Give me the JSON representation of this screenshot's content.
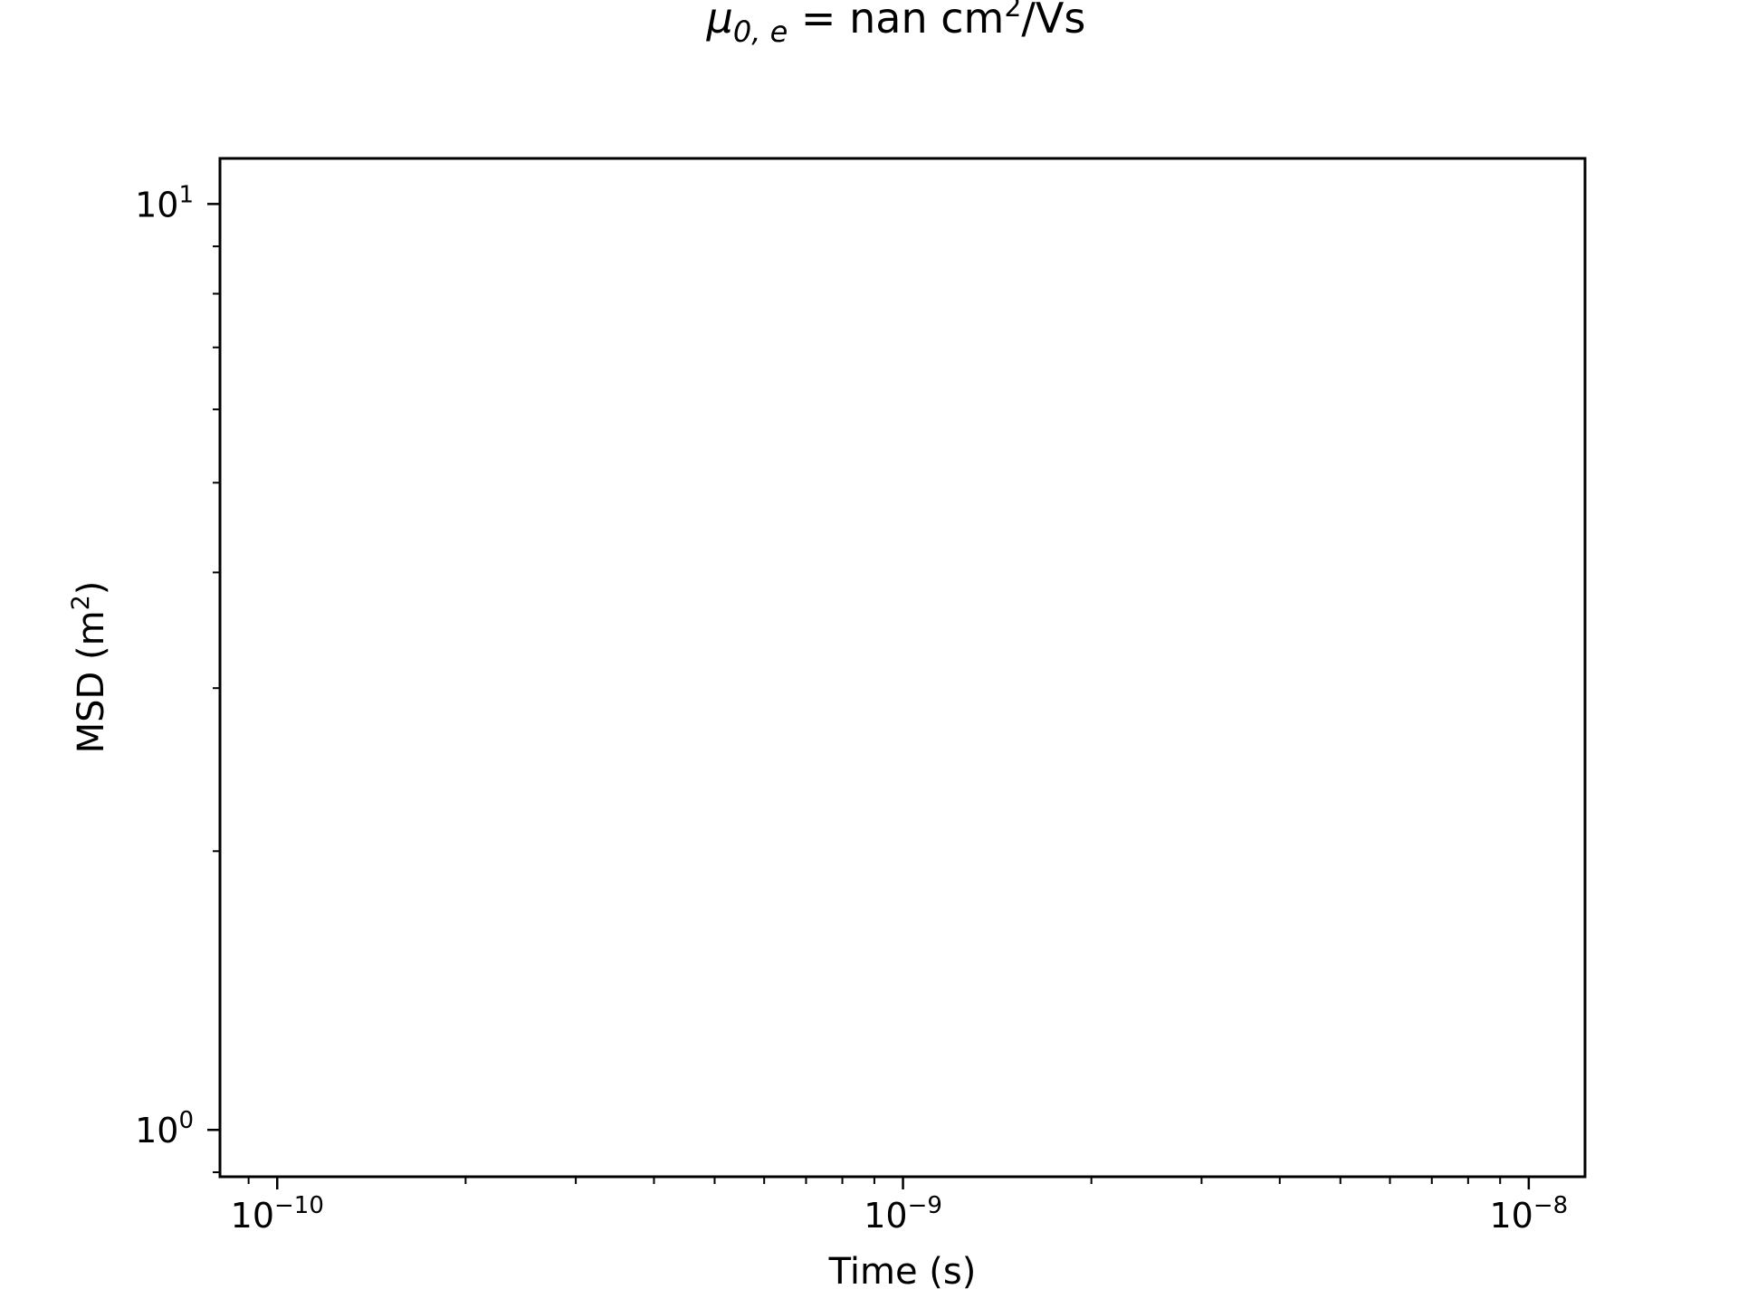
{
  "chart_data": {
    "type": "line",
    "title": {
      "symbol": "μ",
      "subscript": "0, e",
      "text": "= nan cm",
      "superscript": "2",
      "suffix": "/Vs"
    },
    "xlabel": "Time (s)",
    "ylabel": {
      "text": "MSD (m",
      "superscript": "2",
      "suffix": ")"
    },
    "xscale": "log",
    "yscale": "log",
    "xlim": [
      8.1e-11,
      1.23e-08
    ],
    "ylim": [
      0.89,
      11.2
    ],
    "x_ticks": [
      {
        "value": 1e-10,
        "base": "10",
        "exp": "−10"
      },
      {
        "value": 1e-09,
        "base": "10",
        "exp": "−9"
      },
      {
        "value": 1e-08,
        "base": "10",
        "exp": "−8"
      }
    ],
    "y_ticks": [
      {
        "value": 1,
        "base": "10",
        "exp": "0"
      },
      {
        "value": 10,
        "base": "10",
        "exp": "1"
      }
    ],
    "grid": false,
    "series": []
  }
}
